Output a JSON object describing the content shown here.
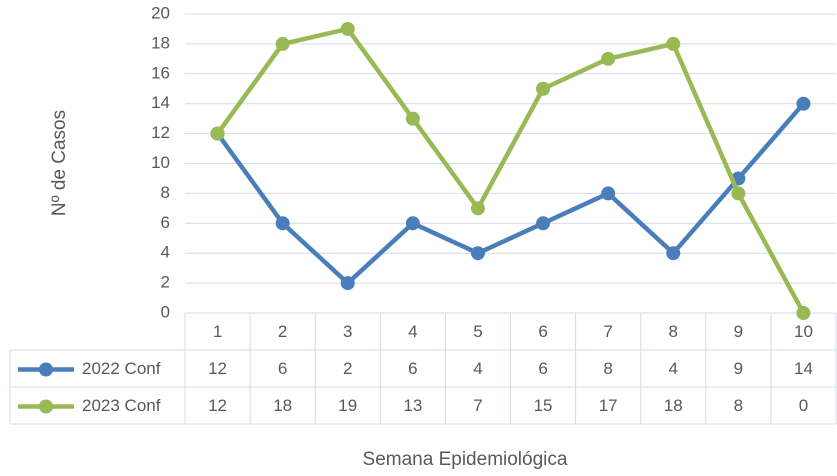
{
  "chart_data": {
    "type": "line",
    "categories": [
      "1",
      "2",
      "3",
      "4",
      "5",
      "6",
      "7",
      "8",
      "9",
      "10"
    ],
    "series": [
      {
        "name": "2022 Conf",
        "color": "#4a7ebb",
        "values": [
          12,
          6,
          2,
          6,
          4,
          6,
          8,
          4,
          9,
          14
        ]
      },
      {
        "name": "2023 Conf",
        "color": "#98b954",
        "values": [
          12,
          18,
          19,
          13,
          7,
          15,
          17,
          18,
          8,
          0
        ]
      }
    ],
    "ylabel": "Nº de Casos",
    "xlabel": "Semana Epidemiológica",
    "ylim": [
      0,
      20
    ],
    "yticks": [
      0,
      2,
      4,
      6,
      8,
      10,
      12,
      14,
      16,
      18,
      20
    ],
    "grid": true,
    "data_table": true
  }
}
